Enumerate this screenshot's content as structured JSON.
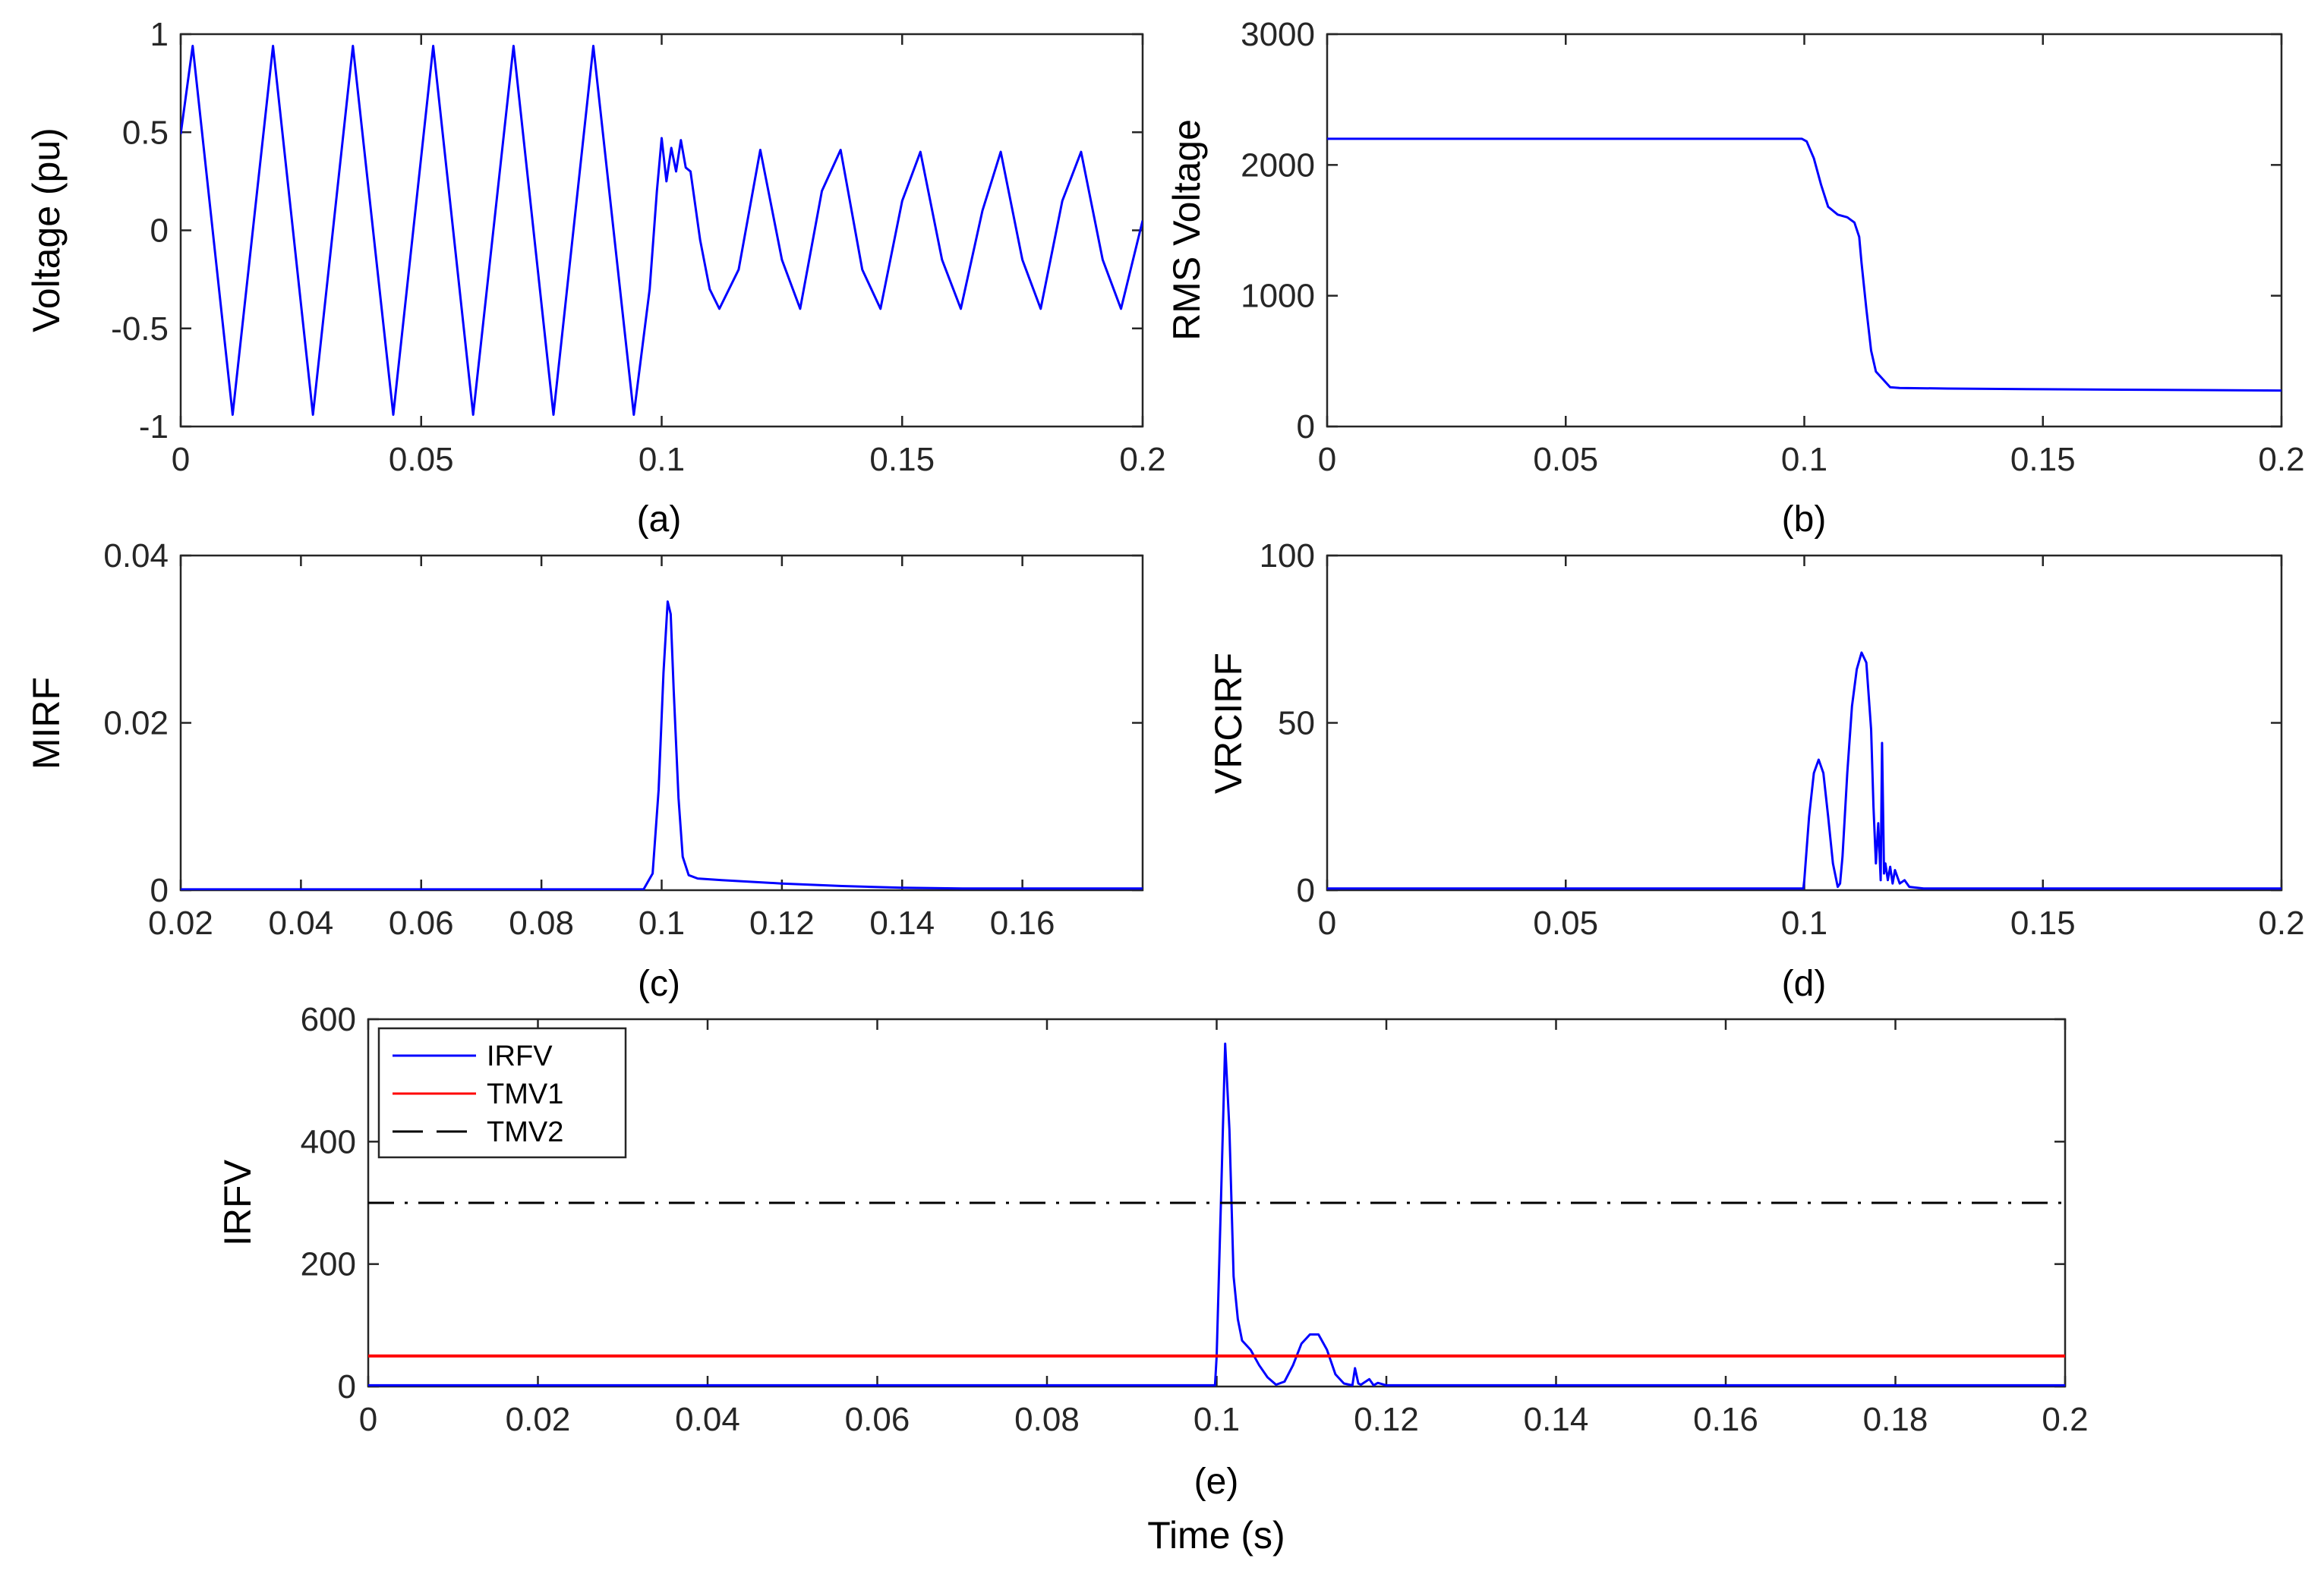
{
  "chart_data": [
    {
      "id": "a",
      "type": "line",
      "caption": "(a)",
      "xlabel": "",
      "ylabel": "Voltage (pu)",
      "xlim": [
        0,
        0.2
      ],
      "ylim": [
        -1,
        1
      ],
      "xticks": [
        0,
        0.05,
        0.1,
        0.15,
        0.2
      ],
      "xtick_labels": [
        "0",
        "0.05",
        "0.1",
        "0.15",
        "0.2"
      ],
      "yticks": [
        -1,
        -0.5,
        0,
        0.5,
        1
      ],
      "ytick_labels": [
        "-1",
        "-0.5",
        "0",
        "0.5",
        "1"
      ],
      "series": [
        {
          "color": "#0000ff",
          "x": [
            0,
            0.0025,
            0.0108,
            0.0192,
            0.0275,
            0.0358,
            0.0442,
            0.0525,
            0.0608,
            0.0692,
            0.0775,
            0.0858,
            0.0942,
            0.0975,
            0.099,
            0.1,
            0.101,
            0.102,
            0.103,
            0.104,
            0.105,
            0.106,
            0.108,
            0.11,
            0.112,
            0.116,
            0.1205,
            0.125,
            0.1288,
            0.1333,
            0.1372,
            0.1417,
            0.1455,
            0.15,
            0.1538,
            0.1583,
            0.1622,
            0.1667,
            0.1705,
            0.175,
            0.1788,
            0.1833,
            0.1872,
            0.1917,
            0.1955,
            0.2
          ],
          "y": [
            0.49,
            0.94,
            -0.94,
            0.94,
            -0.94,
            0.94,
            -0.94,
            0.94,
            -0.94,
            0.94,
            -0.94,
            0.94,
            -0.94,
            -0.3,
            0.2,
            0.47,
            0.25,
            0.42,
            0.3,
            0.46,
            0.32,
            0.3,
            -0.05,
            -0.3,
            -0.4,
            -0.2,
            0.41,
            -0.15,
            -0.4,
            0.2,
            0.41,
            -0.2,
            -0.4,
            0.15,
            0.4,
            -0.15,
            -0.4,
            0.1,
            0.4,
            -0.15,
            -0.4,
            0.15,
            0.4,
            -0.15,
            -0.4,
            0.05
          ]
        }
      ]
    },
    {
      "id": "b",
      "type": "line",
      "caption": "(b)",
      "xlabel": "",
      "ylabel": "RMS Voltage",
      "xlim": [
        0,
        0.2
      ],
      "ylim": [
        0,
        3000
      ],
      "xticks": [
        0,
        0.05,
        0.1,
        0.15,
        0.2
      ],
      "xtick_labels": [
        "0",
        "0.05",
        "0.1",
        "0.15",
        "0.2"
      ],
      "yticks": [
        0,
        1000,
        2000,
        3000
      ],
      "ytick_labels": [
        "0",
        "1000",
        "2000",
        "3000"
      ],
      "series": [
        {
          "color": "#0000ff",
          "x": [
            0,
            0.0995,
            0.1005,
            0.102,
            0.1035,
            0.105,
            0.107,
            0.109,
            0.1105,
            0.1115,
            0.112,
            0.113,
            0.114,
            0.115,
            0.116,
            0.118,
            0.12,
            0.13,
            0.15,
            0.2
          ],
          "y": [
            2200,
            2200,
            2180,
            2050,
            1850,
            1680,
            1620,
            1600,
            1560,
            1450,
            1250,
            900,
            580,
            420,
            380,
            300,
            295,
            290,
            285,
            275
          ]
        }
      ]
    },
    {
      "id": "c",
      "type": "line",
      "caption": "(c)",
      "xlabel": "",
      "ylabel": "MIRF",
      "xlim": [
        0.02,
        0.18
      ],
      "ylim": [
        0,
        0.04
      ],
      "xticks": [
        0.02,
        0.04,
        0.06,
        0.08,
        0.1,
        0.12,
        0.14,
        0.16
      ],
      "xtick_labels": [
        "0.02",
        "0.04",
        "0.06",
        "0.08",
        "0.1",
        "0.12",
        "0.14",
        "0.16"
      ],
      "yticks": [
        0,
        0.02,
        0.04
      ],
      "ytick_labels": [
        "0",
        "0.02",
        "0.04"
      ],
      "series": [
        {
          "color": "#0000ff",
          "x": [
            0.02,
            0.097,
            0.0985,
            0.0995,
            0.1003,
            0.101,
            0.1015,
            0.102,
            0.1028,
            0.1035,
            0.1045,
            0.106,
            0.11,
            0.12,
            0.13,
            0.14,
            0.15,
            0.16,
            0.18
          ],
          "y": [
            0.0001,
            0.0001,
            0.002,
            0.012,
            0.026,
            0.0345,
            0.033,
            0.024,
            0.011,
            0.004,
            0.0018,
            0.0014,
            0.0012,
            0.0008,
            0.0005,
            0.0003,
            0.0002,
            0.0002,
            0.0002
          ]
        }
      ]
    },
    {
      "id": "d",
      "type": "line",
      "caption": "(d)",
      "xlabel": "",
      "ylabel": "VRCIRF",
      "xlim": [
        0,
        0.2
      ],
      "ylim": [
        0,
        100
      ],
      "xticks": [
        0,
        0.05,
        0.1,
        0.15,
        0.2
      ],
      "xtick_labels": [
        "0",
        "0.05",
        "0.1",
        "0.15",
        "0.2"
      ],
      "yticks": [
        0,
        50,
        100
      ],
      "ytick_labels": [
        "0",
        "50",
        "100"
      ],
      "series": [
        {
          "color": "#0000ff",
          "x": [
            0,
            0.0998,
            0.1,
            0.101,
            0.102,
            0.103,
            0.104,
            0.105,
            0.106,
            0.107,
            0.1075,
            0.108,
            0.109,
            0.11,
            0.111,
            0.112,
            0.113,
            0.114,
            0.1145,
            0.115,
            0.1155,
            0.116,
            0.1163,
            0.1167,
            0.117,
            0.1175,
            0.118,
            0.1185,
            0.119,
            0.12,
            0.121,
            0.122,
            0.125,
            0.2
          ],
          "y": [
            0.5,
            0.5,
            3,
            22,
            35,
            39,
            35,
            22,
            8,
            1,
            2,
            10,
            35,
            55,
            66,
            71,
            68,
            48,
            25,
            8,
            20,
            3,
            44,
            5,
            8,
            3,
            7,
            2,
            6,
            2,
            3,
            1,
            0.5,
            0.5
          ]
        }
      ]
    },
    {
      "id": "e",
      "type": "line",
      "caption": "(e)",
      "xlabel": "Time (s)",
      "ylabel": "IRFV",
      "xlim": [
        0,
        0.2
      ],
      "ylim": [
        0,
        600
      ],
      "xticks": [
        0,
        0.02,
        0.04,
        0.06,
        0.08,
        0.1,
        0.12,
        0.14,
        0.16,
        0.18,
        0.2
      ],
      "xtick_labels": [
        "0",
        "0.02",
        "0.04",
        "0.06",
        "0.08",
        "0.1",
        "0.12",
        "0.14",
        "0.16",
        "0.18",
        "0.2"
      ],
      "yticks": [
        0,
        200,
        400,
        600
      ],
      "ytick_labels": [
        "0",
        "200",
        "400",
        "600"
      ],
      "legend": {
        "position": "top-left",
        "entries": [
          "IRFV",
          "TMV1",
          "TMV2"
        ]
      },
      "series": [
        {
          "name": "IRFV",
          "color": "#0000ff",
          "style": "solid",
          "x": [
            0,
            0.0998,
            0.1,
            0.1005,
            0.101,
            0.1015,
            0.102,
            0.1025,
            0.103,
            0.104,
            0.105,
            0.106,
            0.107,
            0.108,
            0.109,
            0.11,
            0.111,
            0.112,
            0.113,
            0.114,
            0.115,
            0.116,
            0.1163,
            0.1167,
            0.117,
            0.118,
            0.1185,
            0.119,
            0.12,
            0.2
          ],
          "y": [
            2,
            2,
            50,
            300,
            560,
            420,
            180,
            110,
            75,
            60,
            35,
            15,
            3,
            8,
            35,
            70,
            85,
            85,
            60,
            20,
            5,
            2,
            30,
            5,
            3,
            12,
            2,
            6,
            2,
            2
          ]
        },
        {
          "name": "TMV1",
          "color": "#ff0000",
          "style": "solid",
          "x": [
            0,
            0.2
          ],
          "y": [
            50,
            50
          ]
        },
        {
          "name": "TMV2",
          "color": "#000000",
          "style": "dashdot",
          "x": [
            0,
            0.2
          ],
          "y": [
            300,
            300
          ]
        }
      ]
    }
  ]
}
